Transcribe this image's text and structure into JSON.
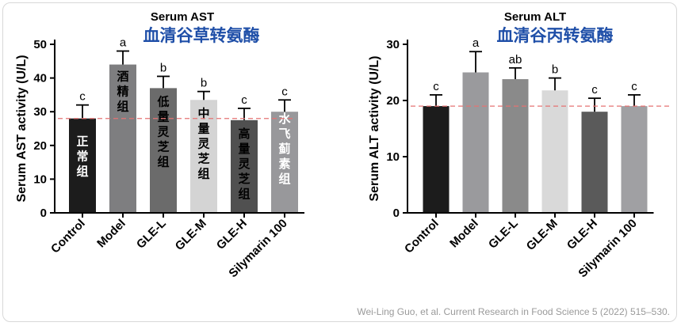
{
  "citation": "Wei-Ling Guo, et al. Current Research in Food Science 5 (2022) 515–530.",
  "chart_data": [
    {
      "type": "bar",
      "title": "Serum AST",
      "subtitle": "血清谷草转氨酶",
      "ylabel": "Serum AST activity (U/L)",
      "ylim": [
        0,
        50
      ],
      "yticks": [
        0,
        10,
        20,
        30,
        40,
        50
      ],
      "categories": [
        "Control",
        "Model",
        "GLE-L",
        "GLE-M",
        "GLE-H",
        "Silymarin 100"
      ],
      "values": [
        28,
        44,
        37,
        33.5,
        27.5,
        30
      ],
      "errors": [
        4,
        4,
        3.5,
        2.5,
        3.5,
        3.5
      ],
      "significance": [
        "c",
        "a",
        "b",
        "b",
        "c",
        "c"
      ],
      "bar_labels": [
        "正常组",
        "酒精组",
        "低量灵芝组",
        "中量灵芝组",
        "高量灵芝组",
        "水飞蓟素组"
      ],
      "bar_colors": [
        "#1c1c1c",
        "#7e7e80",
        "#6b6b6b",
        "#d4d4d4",
        "#505050",
        "#98989b"
      ],
      "bar_label_colors": [
        "#ffffff",
        "#000000",
        "#000000",
        "#000000",
        "#000000",
        "#ffffff"
      ],
      "reference_line": 28,
      "reference_color": "#e57373",
      "grid": false
    },
    {
      "type": "bar",
      "title": "Serum ALT",
      "subtitle": "血清谷丙转氨酶",
      "ylabel": "Serum ALT activity (U/L)",
      "ylim": [
        0,
        30
      ],
      "yticks": [
        0,
        10,
        20,
        30
      ],
      "categories": [
        "Control",
        "Model",
        "GLE-L",
        "GLE-M",
        "GLE-H",
        "Silymarin 100"
      ],
      "values": [
        19,
        25,
        23.8,
        21.8,
        18,
        19
      ],
      "errors": [
        2,
        3.7,
        2,
        2.2,
        2.4,
        2
      ],
      "significance": [
        "c",
        "a",
        "ab",
        "b",
        "c",
        "c"
      ],
      "bar_colors": [
        "#1c1c1c",
        "#9a9a9d",
        "#8a8a8a",
        "#d9d9d9",
        "#5a5a5a",
        "#a0a0a3"
      ],
      "reference_line": 19,
      "reference_color": "#e57373",
      "grid": false
    }
  ]
}
